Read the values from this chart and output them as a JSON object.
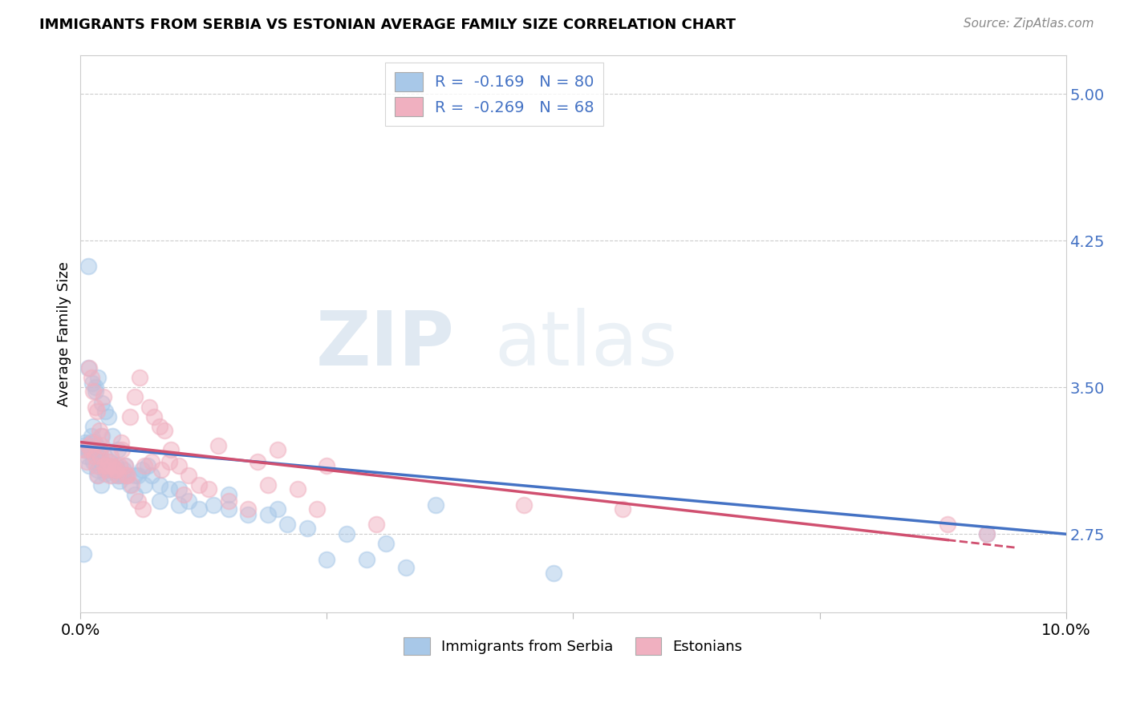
{
  "title": "IMMIGRANTS FROM SERBIA VS ESTONIAN AVERAGE FAMILY SIZE CORRELATION CHART",
  "source": "Source: ZipAtlas.com",
  "ylabel": "Average Family Size",
  "yticks": [
    2.75,
    3.5,
    4.25,
    5.0
  ],
  "xlim": [
    0.0,
    10.0
  ],
  "ylim": [
    2.35,
    5.2
  ],
  "legend_r1": "R =  -0.169   N = 80",
  "legend_r2": "R =  -0.269   N = 68",
  "legend_label1": "Immigrants from Serbia",
  "legend_label2": "Estonians",
  "color_blue": "#a8c8e8",
  "color_pink": "#f0b0c0",
  "trendline_blue": "#4472c4",
  "trendline_pink": "#d05070",
  "watermark_zip": "ZIP",
  "watermark_atlas": "atlas",
  "serbia_x": [
    0.02,
    0.04,
    0.05,
    0.06,
    0.07,
    0.08,
    0.09,
    0.1,
    0.11,
    0.12,
    0.13,
    0.14,
    0.15,
    0.16,
    0.17,
    0.18,
    0.19,
    0.2,
    0.21,
    0.22,
    0.23,
    0.24,
    0.25,
    0.26,
    0.27,
    0.28,
    0.3,
    0.32,
    0.34,
    0.36,
    0.38,
    0.4,
    0.42,
    0.44,
    0.46,
    0.5,
    0.55,
    0.58,
    0.62,
    0.68,
    0.72,
    0.8,
    0.9,
    1.0,
    1.1,
    1.2,
    1.35,
    1.5,
    1.7,
    1.9,
    2.1,
    2.3,
    2.5,
    2.7,
    2.9,
    3.1,
    3.3,
    3.6,
    0.08,
    0.12,
    0.15,
    0.18,
    0.22,
    0.25,
    0.28,
    0.32,
    0.38,
    0.45,
    0.55,
    0.65,
    0.8,
    1.0,
    1.5,
    2.0,
    0.13,
    0.17,
    0.21,
    9.2,
    4.8,
    0.03
  ],
  "serbia_y": [
    3.2,
    3.18,
    3.22,
    3.15,
    3.18,
    4.12,
    3.1,
    3.22,
    3.25,
    3.18,
    3.3,
    3.22,
    3.5,
    3.2,
    3.08,
    3.15,
    3.1,
    3.18,
    3.12,
    3.25,
    3.1,
    3.15,
    3.06,
    3.08,
    3.1,
    3.08,
    3.12,
    3.05,
    3.08,
    3.1,
    3.05,
    3.02,
    3.05,
    3.08,
    3.05,
    3.0,
    2.95,
    3.05,
    3.08,
    3.1,
    3.05,
    2.92,
    2.98,
    2.9,
    2.92,
    2.88,
    2.9,
    2.88,
    2.85,
    2.85,
    2.8,
    2.78,
    2.62,
    2.75,
    2.62,
    2.7,
    2.58,
    2.9,
    3.6,
    3.52,
    3.48,
    3.55,
    3.42,
    3.38,
    3.35,
    3.25,
    3.18,
    3.1,
    3.05,
    3.0,
    3.0,
    2.98,
    2.95,
    2.88,
    3.12,
    3.05,
    3.0,
    2.75,
    2.55,
    2.65
  ],
  "estonian_x": [
    0.04,
    0.06,
    0.08,
    0.1,
    0.12,
    0.14,
    0.16,
    0.18,
    0.2,
    0.22,
    0.24,
    0.26,
    0.28,
    0.3,
    0.32,
    0.35,
    0.38,
    0.4,
    0.42,
    0.45,
    0.48,
    0.5,
    0.55,
    0.6,
    0.65,
    0.7,
    0.75,
    0.8,
    0.85,
    0.9,
    1.0,
    1.1,
    1.2,
    1.3,
    1.5,
    1.7,
    1.9,
    2.2,
    2.5,
    0.09,
    0.11,
    0.13,
    0.15,
    0.17,
    0.19,
    0.21,
    0.23,
    0.27,
    0.31,
    0.36,
    0.41,
    0.46,
    0.52,
    0.58,
    0.63,
    0.72,
    0.82,
    0.92,
    1.05,
    1.4,
    1.8,
    2.0,
    2.4,
    3.0,
    4.5,
    5.5,
    8.8,
    9.2
  ],
  "estonian_y": [
    3.18,
    3.12,
    3.2,
    3.18,
    3.22,
    3.15,
    3.1,
    3.05,
    3.15,
    3.2,
    3.1,
    3.08,
    3.12,
    3.05,
    3.1,
    3.08,
    3.05,
    3.1,
    3.18,
    3.1,
    3.05,
    3.35,
    3.45,
    3.55,
    3.1,
    3.4,
    3.35,
    3.3,
    3.28,
    3.12,
    3.1,
    3.05,
    3.0,
    2.98,
    2.92,
    2.88,
    3.0,
    2.98,
    3.1,
    3.6,
    3.55,
    3.48,
    3.4,
    3.38,
    3.28,
    3.25,
    3.45,
    3.1,
    3.15,
    3.08,
    3.22,
    3.05,
    3.0,
    2.92,
    2.88,
    3.12,
    3.08,
    3.18,
    2.95,
    3.2,
    3.12,
    3.18,
    2.88,
    2.8,
    2.9,
    2.88,
    2.8,
    2.75
  ],
  "trendline_serbia_x0": 0.0,
  "trendline_serbia_y0": 3.2,
  "trendline_serbia_x1": 10.0,
  "trendline_serbia_y1": 2.75,
  "trendline_estonian_x0": 0.0,
  "trendline_estonian_y0": 3.22,
  "trendline_estonian_x1": 9.5,
  "trendline_estonian_y1": 2.68
}
